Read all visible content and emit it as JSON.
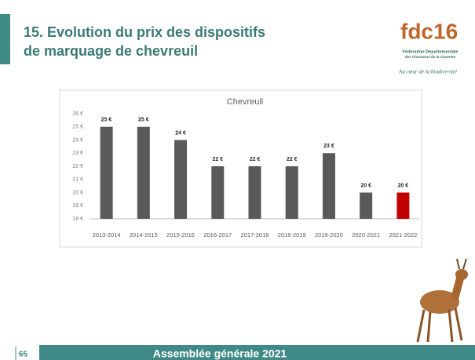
{
  "slide": {
    "title_lines": [
      "15. Evolution du prix des dispositifs",
      "de marquage de chevreuil"
    ],
    "logo": {
      "mark": "fdc16",
      "name_lines": [
        "Fédération Départementale",
        "des Chasseurs de la Charente"
      ],
      "tagline": "Au cœur de la biodiversité"
    },
    "footer": "Assemblée générale 2021",
    "page_number": "65"
  },
  "chart_data": {
    "type": "bar",
    "title": "Chevreuil",
    "categories": [
      "2013-2014",
      "2014-2015",
      "2015-2016",
      "2016-2017",
      "2017-2018",
      "2018-2019",
      "2019-2020",
      "2020-2021",
      "2021-2022"
    ],
    "values": [
      25,
      25,
      24,
      22,
      22,
      22,
      23,
      20,
      20
    ],
    "value_labels": [
      "25 €",
      "25 €",
      "24 €",
      "22 €",
      "22 €",
      "22 €",
      "23 €",
      "20 €",
      "20 €"
    ],
    "colors": [
      "#595959",
      "#595959",
      "#595959",
      "#595959",
      "#595959",
      "#595959",
      "#595959",
      "#595959",
      "#c00000"
    ],
    "ylim": [
      18,
      26
    ],
    "yticks": [
      {
        "value": 18,
        "label": "18 €"
      },
      {
        "value": 19,
        "label": "19 €"
      },
      {
        "value": 20,
        "label": "20 €"
      },
      {
        "value": 21,
        "label": "21 €"
      },
      {
        "value": 22,
        "label": "22 €"
      },
      {
        "value": 23,
        "label": "23 €"
      },
      {
        "value": 24,
        "label": "24 €"
      },
      {
        "value": 25,
        "label": "25 €"
      },
      {
        "value": 26,
        "label": "26 €"
      }
    ]
  }
}
